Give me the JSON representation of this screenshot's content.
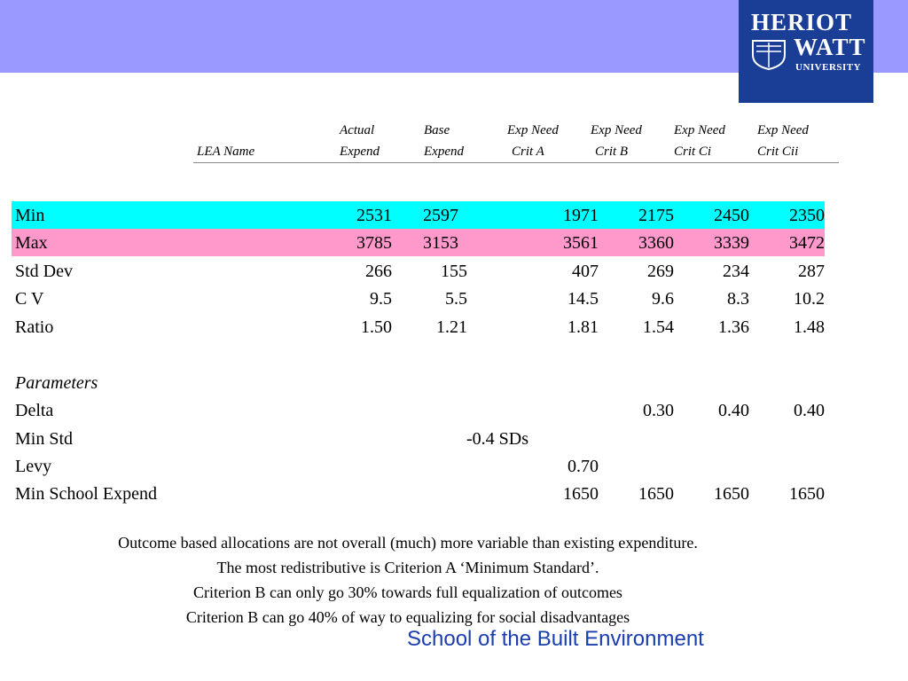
{
  "logo": {
    "line1": "HERIOT",
    "line2": "WATT",
    "line3": "UNIVERSITY"
  },
  "header": {
    "lea_name": "LEA Name",
    "cols": [
      {
        "l1": "Actual",
        "l2": "Expend"
      },
      {
        "l1": "Base",
        "l2": "Expend"
      },
      {
        "l1": "Exp Need",
        "l2": "Crit A"
      },
      {
        "l1": "Exp Need",
        "l2": "Crit B"
      },
      {
        "l1": "Exp Need",
        "l2": "Crit Ci"
      },
      {
        "l1": "Exp Need",
        "l2": "Crit Cii"
      }
    ]
  },
  "stats": [
    {
      "label": "Min",
      "values": [
        "2531",
        "2597",
        "1971",
        "2175",
        "2450",
        "2350"
      ]
    },
    {
      "label": "Max",
      "values": [
        "3785",
        "3153",
        "3561",
        "3360",
        "3339",
        "3472"
      ]
    },
    {
      "label": "Std Dev",
      "values": [
        "266",
        "155",
        "407",
        "269",
        "234",
        "287"
      ]
    },
    {
      "label": "C V",
      "values": [
        "9.5",
        "5.5",
        "14.5",
        "9.6",
        "8.3",
        "10.2"
      ]
    },
    {
      "label": "Ratio",
      "values": [
        "1.50",
        "1.21",
        "1.81",
        "1.54",
        "1.36",
        "1.48"
      ]
    }
  ],
  "parameters": {
    "title": "Parameters",
    "delta": {
      "label": "Delta",
      "values": [
        "0.30",
        "0.40",
        "0.40"
      ]
    },
    "min_std": {
      "label": "Min Std",
      "value": "-0.4 SDs"
    },
    "levy": {
      "label": "Levy",
      "value": "0.70"
    },
    "min_school": {
      "label": "Min School Expend",
      "values": [
        "1650",
        "1650",
        "1650",
        "1650"
      ]
    }
  },
  "notes": [
    "Outcome based allocations are not overall (much) more variable than existing expenditure.",
    "The most redistributive is Criterion A ‘Minimum Standard’.",
    "Criterion B can only go 30% towards full equalization of outcomes",
    "Criterion B can go 40% of way to equalizing for social disadvantages"
  ],
  "footer": "School of the Built Environment"
}
